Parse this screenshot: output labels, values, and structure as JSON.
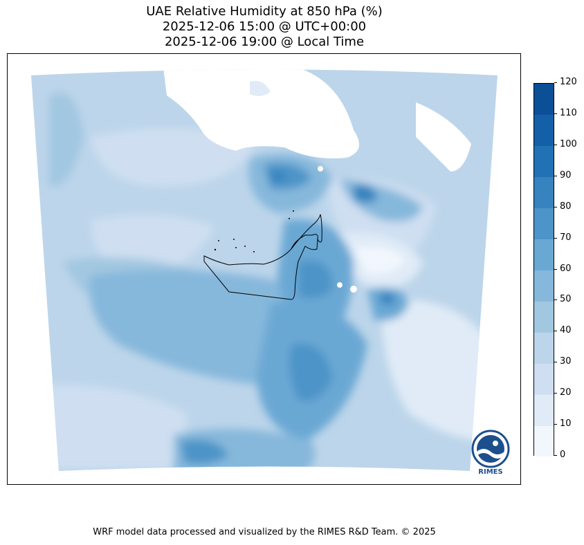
{
  "title": {
    "line1": "UAE Relative Humidity at 850 hPa (%)",
    "line2": "2025-12-06 15:00 @ UTC+00:00",
    "line3": "2025-12-06 19:00 @ Local Time"
  },
  "colorbar": {
    "ticks": [
      "0",
      "10",
      "20",
      "30",
      "40",
      "50",
      "60",
      "70",
      "80",
      "90",
      "100",
      "110",
      "120"
    ],
    "colors": [
      "#f2f7fd",
      "#e0ebf7",
      "#cfdff1",
      "#bcd5ea",
      "#a2c7e1",
      "#86b8db",
      "#6aa8d4",
      "#4d94c8",
      "#3683bf",
      "#2171b5",
      "#1460a8",
      "#0b4f97",
      "#08306b"
    ]
  },
  "map": {
    "region": "UAE",
    "variable": "Relative Humidity",
    "level": "850 hPa",
    "units": "%"
  },
  "logo": {
    "text": "RIMES"
  },
  "footer": "WRF model data processed and visualized by the RIMES R&D Team. © 2025"
}
